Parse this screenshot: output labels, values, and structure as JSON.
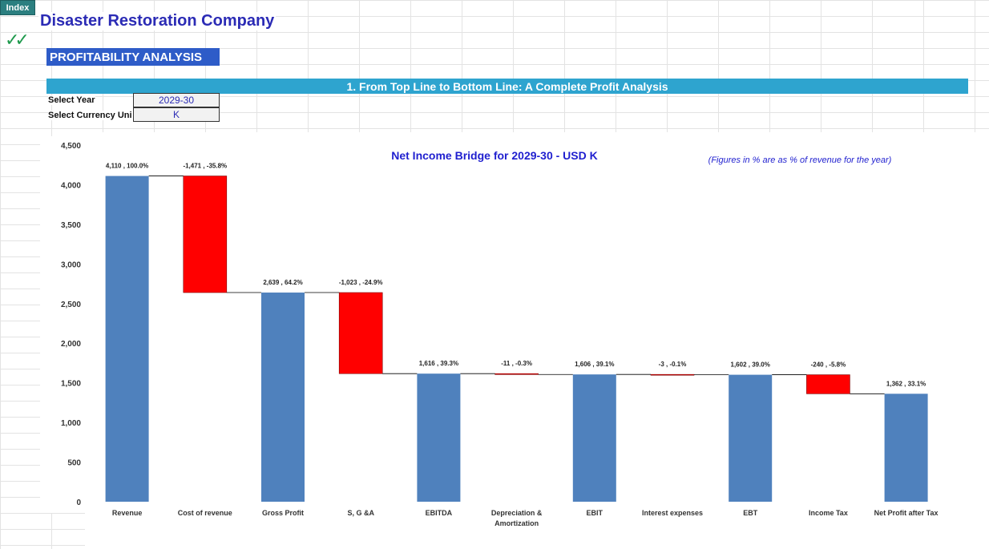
{
  "index_tab": "Index",
  "company_name": "Disaster Restoration Company",
  "section_title": "PROFITABILITY ANALYSIS",
  "banner_title": "1. From Top Line to Bottom Line: A Complete Profit Analysis",
  "inputs": {
    "year_label": "Select Year",
    "year_value": "2029-30",
    "currency_label": "Select Currency Uni",
    "currency_value": "K"
  },
  "colors": {
    "total_bar": "#4f81bd",
    "negative_bar": "#ff0000",
    "title": "#1f1fcf",
    "note": "#1f1fcf"
  },
  "chart_data": {
    "type": "bar",
    "title": "Net Income Bridge for 2029-30 - USD K",
    "note": "(Figures in % are as % of revenue for the year)",
    "ylim": [
      0,
      4500
    ],
    "yticks": [
      0,
      500,
      1000,
      1500,
      2000,
      2500,
      3000,
      3500,
      4000,
      4500
    ],
    "categories": [
      [
        "Revenue"
      ],
      [
        "Cost of revenue"
      ],
      [
        "Gross Profit"
      ],
      [
        "S, G &A"
      ],
      [
        "EBITDA"
      ],
      [
        "Depreciation &",
        "Amortization"
      ],
      [
        "EBIT"
      ],
      [
        "Interest expenses"
      ],
      [
        "EBT"
      ],
      [
        "Income Tax"
      ],
      [
        "Net Profit after Tax"
      ]
    ],
    "steps": [
      {
        "kind": "total",
        "value": 4110,
        "label": "4,110 , 100.0%"
      },
      {
        "kind": "delta",
        "value": -1471,
        "label": "-1,471 , -35.8%"
      },
      {
        "kind": "total",
        "value": 2639,
        "label": "2,639 , 64.2%"
      },
      {
        "kind": "delta",
        "value": -1023,
        "label": "-1,023 , -24.9%"
      },
      {
        "kind": "total",
        "value": 1616,
        "label": "1,616 , 39.3%"
      },
      {
        "kind": "delta",
        "value": -11,
        "label": "-11 , -0.3%"
      },
      {
        "kind": "total",
        "value": 1606,
        "label": "1,606 , 39.1%"
      },
      {
        "kind": "delta",
        "value": -3,
        "label": "-3 , -0.1%"
      },
      {
        "kind": "total",
        "value": 1602,
        "label": "1,602 , 39.0%"
      },
      {
        "kind": "delta",
        "value": -240,
        "label": "-240 , -5.8%"
      },
      {
        "kind": "total",
        "value": 1362,
        "label": "1,362 , 33.1%"
      }
    ]
  }
}
